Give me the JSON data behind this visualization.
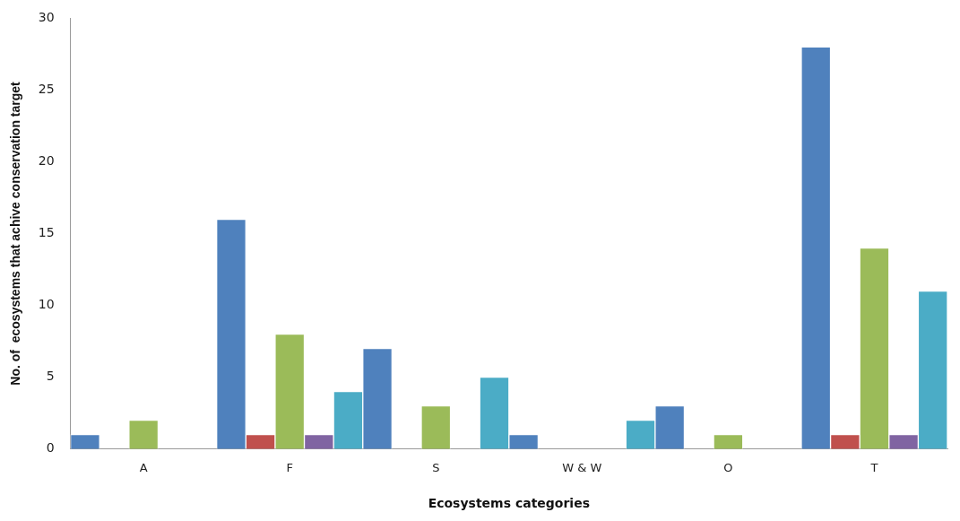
{
  "chart_data": {
    "type": "bar",
    "xlabel": "Ecosystems categories",
    "ylabel": "No. of  ecosystems that achive conservation target",
    "categories": [
      "A",
      "F",
      "S",
      "W & W",
      "O",
      "T"
    ],
    "series": [
      {
        "color": "#4f81bd",
        "values": [
          1,
          16,
          7,
          1,
          3,
          28
        ]
      },
      {
        "color": "#c0504d",
        "values": [
          0,
          1,
          0,
          0,
          0,
          1
        ]
      },
      {
        "color": "#9bbb59",
        "values": [
          2,
          8,
          3,
          0,
          1,
          14
        ]
      },
      {
        "color": "#8064a2",
        "values": [
          0,
          1,
          0,
          0,
          0,
          1
        ]
      },
      {
        "color": "#4bacc6",
        "values": [
          0,
          4,
          5,
          2,
          0,
          11
        ]
      }
    ],
    "ylim": [
      0,
      30
    ],
    "yticks": [
      0,
      5,
      10,
      15,
      20,
      25,
      30
    ],
    "grid": false,
    "legend": false
  }
}
